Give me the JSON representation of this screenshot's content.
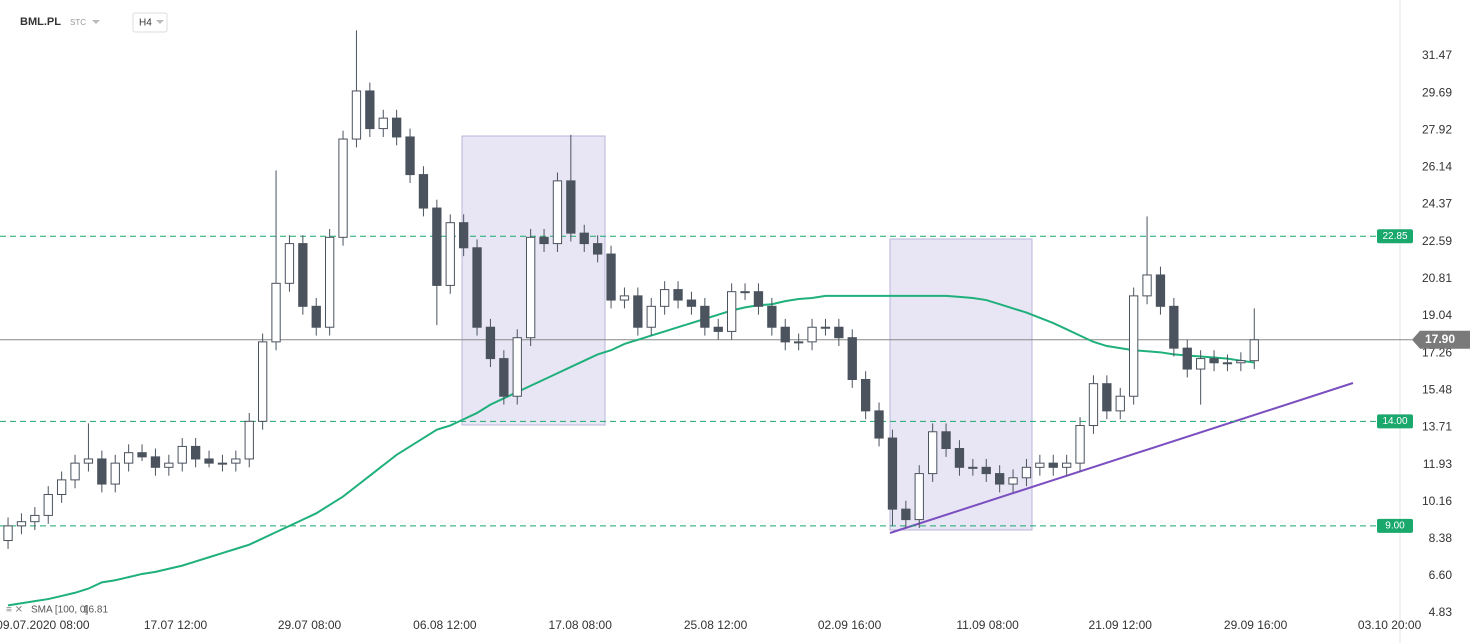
{
  "chart_data": {
    "type": "candlestick",
    "symbol": "BML.PL",
    "subtitle": "STC",
    "timeframe": "H4",
    "xlim": [
      -0.6,
      109.1
    ],
    "ylim": [
      4.02,
      34.15
    ],
    "yticks": [
      4.83,
      {
        "value": 6.6,
        "label": "6.60"
      },
      8.38,
      10.16,
      11.93,
      13.71,
      15.48,
      17.26,
      19.04,
      20.81,
      22.59,
      24.37,
      26.14,
      27.92,
      29.69,
      31.47
    ],
    "xticks": [
      {
        "value": 2.6,
        "label": "09.07.2020 08:00"
      },
      {
        "value": 12.5,
        "label": "17.07 12:00"
      },
      {
        "value": 22.5,
        "label": "29.07 08:00"
      },
      {
        "value": 32.6,
        "label": "06.08 12:00"
      },
      {
        "value": 42.7,
        "label": "17.08 08:00"
      },
      {
        "value": 52.8,
        "label": "25.08 12:00"
      },
      {
        "value": 62.8,
        "label": "02.09 16:00"
      },
      {
        "value": 73.1,
        "label": "11.09 08:00"
      },
      {
        "value": 83.0,
        "label": "21.09 12:00"
      },
      {
        "value": 93.1,
        "label": "29.09 16:00"
      },
      {
        "value": 103.1,
        "label": "03.10 20:00"
      }
    ],
    "series": [
      {
        "name": "BML.PL",
        "up_color": "#ffffff",
        "down_color": "#4b535e",
        "edge_color": "#4b535e",
        "open": [
          8.3,
          9.0,
          9.2,
          9.5,
          10.5,
          11.2,
          12.0,
          12.2,
          11.0,
          12.0,
          12.5,
          12.3,
          11.8,
          12.0,
          12.8,
          12.2,
          12.0,
          12.0,
          12.2,
          14.0,
          17.8,
          20.6,
          22.5,
          19.5,
          18.5,
          22.8,
          27.5,
          29.8,
          28.0,
          28.5,
          27.6,
          25.8,
          24.2,
          20.5,
          23.5,
          22.3,
          18.5,
          17.0,
          15.2,
          18.0,
          22.8,
          22.5,
          25.5,
          23.0,
          22.5,
          22.0,
          19.8,
          20.0,
          18.5,
          19.5,
          20.3,
          19.8,
          19.5,
          18.5,
          18.3,
          20.2,
          20.2,
          19.5,
          18.5,
          17.8,
          17.8,
          18.5,
          18.5,
          18.0,
          16.0,
          14.5,
          13.2,
          9.8,
          9.3,
          11.5,
          13.5,
          12.7,
          11.8,
          11.8,
          11.5,
          11.0,
          11.3,
          11.8,
          12.0,
          11.8,
          12.0,
          13.8,
          15.8,
          14.5,
          15.2,
          20.0,
          21.0,
          19.5,
          17.5,
          16.5,
          17.0,
          16.8,
          16.8,
          16.9
        ],
        "high": [
          9.4,
          9.6,
          9.9,
          10.9,
          11.6,
          12.4,
          13.9,
          12.6,
          12.4,
          12.9,
          12.9,
          12.7,
          12.4,
          13.2,
          13.2,
          12.6,
          12.4,
          12.6,
          14.4,
          18.2,
          26.0,
          22.9,
          22.9,
          19.9,
          23.2,
          27.9,
          32.7,
          30.2,
          28.9,
          28.9,
          28.0,
          26.2,
          24.6,
          23.9,
          23.9,
          22.7,
          18.9,
          17.4,
          18.4,
          23.2,
          23.2,
          25.9,
          27.7,
          23.4,
          22.9,
          22.4,
          20.4,
          20.4,
          19.9,
          20.7,
          20.7,
          20.2,
          19.9,
          18.9,
          20.6,
          20.6,
          20.6,
          19.9,
          18.9,
          18.2,
          18.9,
          18.9,
          18.9,
          18.4,
          16.4,
          14.9,
          13.6,
          10.2,
          11.9,
          13.9,
          13.9,
          13.1,
          12.2,
          12.2,
          11.9,
          11.7,
          12.2,
          12.4,
          12.4,
          12.4,
          14.2,
          16.2,
          16.2,
          15.6,
          20.4,
          23.8,
          21.4,
          19.9,
          17.9,
          17.4,
          17.4,
          17.2,
          17.3,
          19.4
        ],
        "low": [
          7.9,
          8.6,
          8.8,
          9.1,
          10.1,
          10.8,
          11.6,
          10.6,
          10.6,
          11.6,
          12.1,
          11.4,
          11.4,
          11.6,
          11.8,
          11.8,
          11.6,
          11.6,
          11.8,
          13.6,
          17.4,
          20.2,
          19.1,
          18.1,
          18.1,
          22.4,
          27.1,
          27.6,
          27.6,
          27.2,
          25.4,
          23.8,
          18.6,
          20.1,
          21.9,
          18.1,
          16.6,
          14.8,
          14.8,
          17.6,
          22.1,
          22.1,
          22.6,
          22.1,
          21.6,
          19.4,
          19.4,
          18.1,
          18.1,
          19.1,
          19.4,
          19.1,
          18.1,
          17.9,
          17.9,
          19.8,
          19.1,
          18.1,
          17.4,
          17.4,
          17.4,
          18.1,
          17.6,
          15.6,
          14.1,
          12.8,
          9.0,
          8.9,
          8.9,
          11.1,
          12.3,
          11.4,
          11.4,
          11.1,
          10.6,
          10.6,
          10.9,
          11.4,
          11.4,
          11.4,
          11.6,
          13.4,
          14.1,
          14.1,
          14.8,
          19.6,
          19.1,
          17.1,
          16.1,
          14.8,
          16.4,
          16.4,
          16.4,
          16.5
        ],
        "close": [
          9.0,
          9.2,
          9.5,
          10.5,
          11.2,
          12.0,
          12.2,
          11.0,
          12.0,
          12.5,
          12.3,
          11.8,
          12.0,
          12.8,
          12.2,
          12.0,
          12.0,
          12.2,
          14.0,
          17.8,
          20.6,
          22.5,
          19.5,
          18.5,
          22.8,
          27.5,
          29.8,
          28.0,
          28.5,
          27.6,
          25.8,
          24.2,
          20.5,
          23.5,
          22.3,
          18.5,
          17.0,
          15.2,
          18.0,
          22.8,
          22.5,
          25.5,
          23.0,
          22.5,
          22.0,
          19.8,
          20.0,
          18.5,
          19.5,
          20.3,
          19.8,
          19.5,
          18.5,
          18.3,
          20.2,
          20.2,
          19.5,
          18.5,
          17.8,
          17.8,
          18.5,
          18.5,
          18.0,
          16.0,
          14.5,
          13.2,
          9.8,
          9.3,
          11.5,
          13.5,
          12.7,
          11.8,
          11.8,
          11.5,
          11.0,
          11.3,
          11.8,
          12.0,
          11.8,
          12.0,
          13.8,
          15.8,
          14.5,
          15.2,
          20.0,
          21.0,
          19.5,
          17.5,
          16.5,
          17.0,
          16.8,
          16.8,
          16.9,
          17.9
        ]
      }
    ],
    "indicator": {
      "label": "SMA [100, 0]",
      "last": 16.81,
      "color": "#1fb07b",
      "values": [
        5.2,
        5.3,
        5.4,
        5.5,
        5.65,
        5.8,
        6.0,
        6.3,
        6.4,
        6.55,
        6.7,
        6.8,
        6.95,
        7.1,
        7.3,
        7.5,
        7.7,
        7.9,
        8.1,
        8.4,
        8.7,
        9.0,
        9.3,
        9.6,
        10.0,
        10.4,
        10.9,
        11.4,
        11.9,
        12.4,
        12.8,
        13.2,
        13.6,
        13.8,
        14.1,
        14.4,
        14.8,
        15.1,
        15.4,
        15.7,
        16.0,
        16.3,
        16.6,
        16.9,
        17.2,
        17.4,
        17.7,
        17.9,
        18.1,
        18.3,
        18.5,
        18.7,
        18.9,
        19.1,
        19.3,
        19.45,
        19.55,
        19.6,
        19.75,
        19.85,
        19.9,
        20.0,
        20.0,
        20.0,
        20.0,
        20.0,
        20.0,
        20.0,
        20.0,
        20.0,
        20.0,
        19.95,
        19.9,
        19.8,
        19.6,
        19.4,
        19.2,
        18.95,
        18.7,
        18.4,
        18.1,
        17.8,
        17.6,
        17.5,
        17.4,
        17.35,
        17.3,
        17.2,
        17.15,
        17.1,
        17.05,
        17.0,
        16.9,
        16.81
      ]
    },
    "levels": [
      {
        "value": 22.85,
        "label": "22.85"
      },
      {
        "value": 14.0,
        "label": "14.00"
      },
      {
        "value": 9.0,
        "label": "9.00"
      }
    ],
    "level_color": "#1aa86d",
    "last_price": {
      "value": 17.9,
      "label": "17.90"
    }
  }
}
